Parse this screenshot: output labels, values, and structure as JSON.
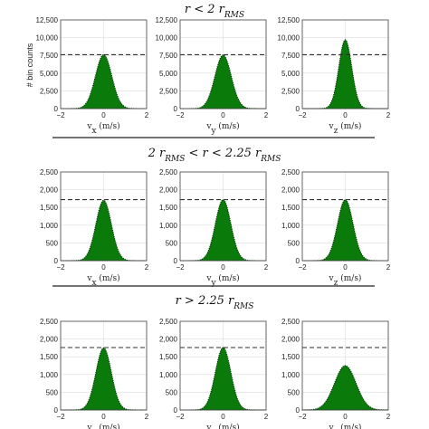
{
  "y_label": "# bin counts",
  "rows": [
    {
      "title": "r < 2 r_RMS",
      "ylim": [
        0,
        12500
      ],
      "yticks": [
        "0",
        "2,500",
        "5,000",
        "7,500",
        "10,000",
        "12,500"
      ],
      "ytick_values": [
        0,
        2500,
        5000,
        7500,
        10000,
        12500
      ],
      "dashed_level": 7600
    },
    {
      "title": "2 r_RMS < r < 2.25 r_RMS",
      "ylim": [
        0,
        2500
      ],
      "yticks": [
        "0",
        "500",
        "1,000",
        "1,500",
        "2,000",
        "2,500"
      ],
      "ytick_values": [
        0,
        500,
        1000,
        1500,
        2000,
        2500
      ],
      "dashed_level": 1720
    },
    {
      "title": "r > 2.25 r_RMS",
      "ylim": [
        0,
        2500
      ],
      "yticks": [
        "0",
        "500",
        "1,000",
        "1,500",
        "2,000",
        "2,500"
      ],
      "ytick_values": [
        0,
        500,
        1000,
        1500,
        2000,
        2500
      ],
      "dashed_level": 1760
    }
  ],
  "xticks": [
    "−2",
    "0",
    "2"
  ],
  "xtick_values": [
    -2,
    0,
    2
  ],
  "xlabels": [
    "v_x (m/s)",
    "v_y (m/s)",
    "v_z (m/s)"
  ],
  "chart_data": {
    "type": "area",
    "grid": true,
    "xlim": [
      -2,
      2
    ],
    "panels": [
      {
        "row": 0,
        "col": 0,
        "peak": 7600,
        "sigma": 0.38
      },
      {
        "row": 0,
        "col": 1,
        "peak": 7550,
        "sigma": 0.38
      },
      {
        "row": 0,
        "col": 2,
        "peak": 9700,
        "sigma": 0.3
      },
      {
        "row": 1,
        "col": 0,
        "peak": 1700,
        "sigma": 0.36
      },
      {
        "row": 1,
        "col": 1,
        "peak": 1720,
        "sigma": 0.36
      },
      {
        "row": 1,
        "col": 2,
        "peak": 1720,
        "sigma": 0.36
      },
      {
        "row": 2,
        "col": 0,
        "peak": 1750,
        "sigma": 0.36
      },
      {
        "row": 2,
        "col": 1,
        "peak": 1760,
        "sigma": 0.36
      },
      {
        "row": 2,
        "col": 2,
        "peak": 1250,
        "sigma": 0.5
      }
    ]
  },
  "colors": {
    "fill": "#0a7a0a",
    "edge": "#003300",
    "dashed": "#333333",
    "grid": "#dddddd"
  }
}
